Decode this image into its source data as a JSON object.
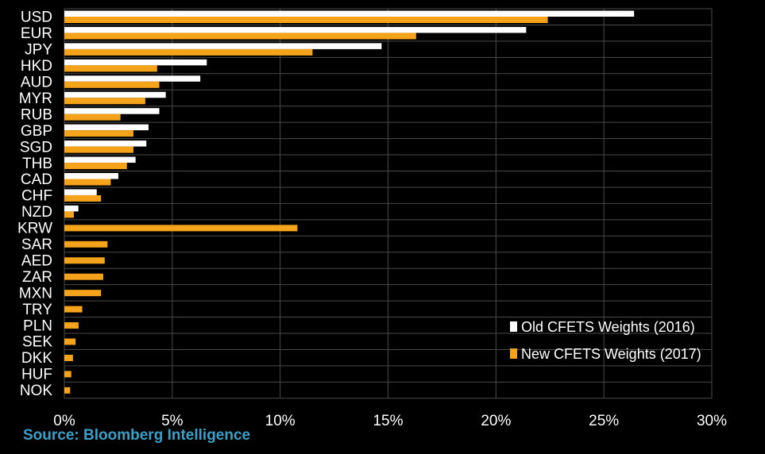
{
  "chart_data": {
    "type": "bar",
    "orientation": "horizontal",
    "categories": [
      "USD",
      "EUR",
      "JPY",
      "HKD",
      "AUD",
      "MYR",
      "RUB",
      "GBP",
      "SGD",
      "THB",
      "CAD",
      "CHF",
      "NZD",
      "KRW",
      "SAR",
      "AED",
      "ZAR",
      "MXN",
      "TRY",
      "PLN",
      "SEK",
      "DKK",
      "HUF",
      "NOK"
    ],
    "series": [
      {
        "name": "Old CFETS Weights (2016)",
        "color": "#ffffff",
        "values": [
          26.4,
          21.4,
          14.7,
          6.6,
          6.3,
          4.7,
          4.4,
          3.9,
          3.8,
          3.3,
          2.5,
          1.5,
          0.65,
          null,
          null,
          null,
          null,
          null,
          null,
          null,
          null,
          null,
          null,
          null
        ]
      },
      {
        "name": "New CFETS Weights (2017)",
        "color": "#f5a31a",
        "values": [
          22.4,
          16.3,
          11.5,
          4.3,
          4.4,
          3.75,
          2.6,
          3.2,
          3.2,
          2.9,
          2.15,
          1.7,
          0.44,
          10.8,
          2.0,
          1.87,
          1.8,
          1.7,
          0.83,
          0.66,
          0.52,
          0.4,
          0.32,
          0.27
        ]
      }
    ],
    "x_ticks": [
      "0%",
      "5%",
      "10%",
      "15%",
      "20%",
      "25%",
      "30%"
    ],
    "xlim": [
      0,
      30
    ],
    "grid": true,
    "legend_position": "bottom-right",
    "source": "Source: Bloomberg Intelligence",
    "source_color": "#3aa0c8",
    "background": "#000000",
    "grid_color": "#4a4a4a"
  }
}
